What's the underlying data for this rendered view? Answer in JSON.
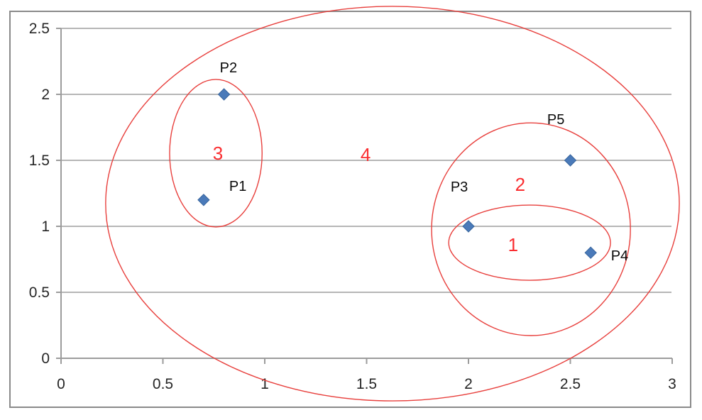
{
  "window": {
    "background": "#ffffff",
    "frame_color": "#8a8a8a"
  },
  "chart_data": {
    "type": "scatter",
    "title": "",
    "xlabel": "",
    "ylabel": "",
    "xlim": [
      0,
      3
    ],
    "ylim": [
      0,
      2.5
    ],
    "grid": "horizontal-only",
    "legend": "none",
    "marker": "diamond",
    "x_tick_values": [
      0,
      0.5,
      1,
      1.5,
      2,
      2.5,
      3
    ],
    "x_tick_labels": [
      "0",
      "0.5",
      "1",
      "1.5",
      "2",
      "2.5",
      "3"
    ],
    "y_tick_values": [
      0,
      0.5,
      1,
      1.5,
      2,
      2.5
    ],
    "y_tick_labels": [
      "0",
      "0.5",
      "1",
      "1.5",
      "2",
      "2.5"
    ],
    "points": [
      {
        "label": "P1",
        "x": 0.7,
        "y": 1.2,
        "label_pos": {
          "x": 0.868,
          "y": 1.306
        }
      },
      {
        "label": "P2",
        "x": 0.8,
        "y": 2.0,
        "label_pos": {
          "x": 0.822,
          "y": 2.204
        }
      },
      {
        "label": "P3",
        "x": 2.0,
        "y": 1.0,
        "label_pos": {
          "x": 1.955,
          "y": 1.301
        }
      },
      {
        "label": "P4",
        "x": 2.6,
        "y": 0.8,
        "label_pos": {
          "x": 2.742,
          "y": 0.78
        }
      },
      {
        "label": "P5",
        "x": 2.5,
        "y": 1.5,
        "label_pos": {
          "x": 2.429,
          "y": 1.812
        }
      }
    ],
    "clusters": [
      {
        "label": "1",
        "members": [
          "P3",
          "P4"
        ],
        "ellipse": {
          "cx": 2.3,
          "cy": 0.876,
          "rx": 0.397,
          "ry": 0.285
        },
        "label_pos": {
          "x": 2.219,
          "y": 0.86
        }
      },
      {
        "label": "2",
        "members": [
          "P3",
          "P4",
          "P5"
        ],
        "ellipse": {
          "cx": 2.307,
          "cy": 0.978,
          "rx": 0.488,
          "ry": 0.806
        },
        "label_pos": {
          "x": 2.254,
          "y": 1.317
        }
      },
      {
        "label": "3",
        "members": [
          "P1",
          "P2"
        ],
        "ellipse": {
          "cx": 0.76,
          "cy": 1.554,
          "rx": 0.227,
          "ry": 0.559
        },
        "label_pos": {
          "x": 0.77,
          "y": 1.554
        }
      },
      {
        "label": "4",
        "members": [
          "P1",
          "P2",
          "P3",
          "P4",
          "P5"
        ],
        "ellipse": {
          "cx": 1.627,
          "cy": 1.172,
          "rx": 1.408,
          "ry": 1.495
        },
        "label_pos": {
          "x": 1.495,
          "y": 1.543
        }
      }
    ],
    "colors": {
      "marker": "#4a7ab9",
      "marker_edge": "#35639c",
      "ellipse": "#e8403d",
      "cluster_label": "#fa2e31",
      "gridline": "#ababab",
      "axis": "#9c9c9c",
      "tick_label": "#262626",
      "point_label": "#0a0a0a"
    }
  }
}
